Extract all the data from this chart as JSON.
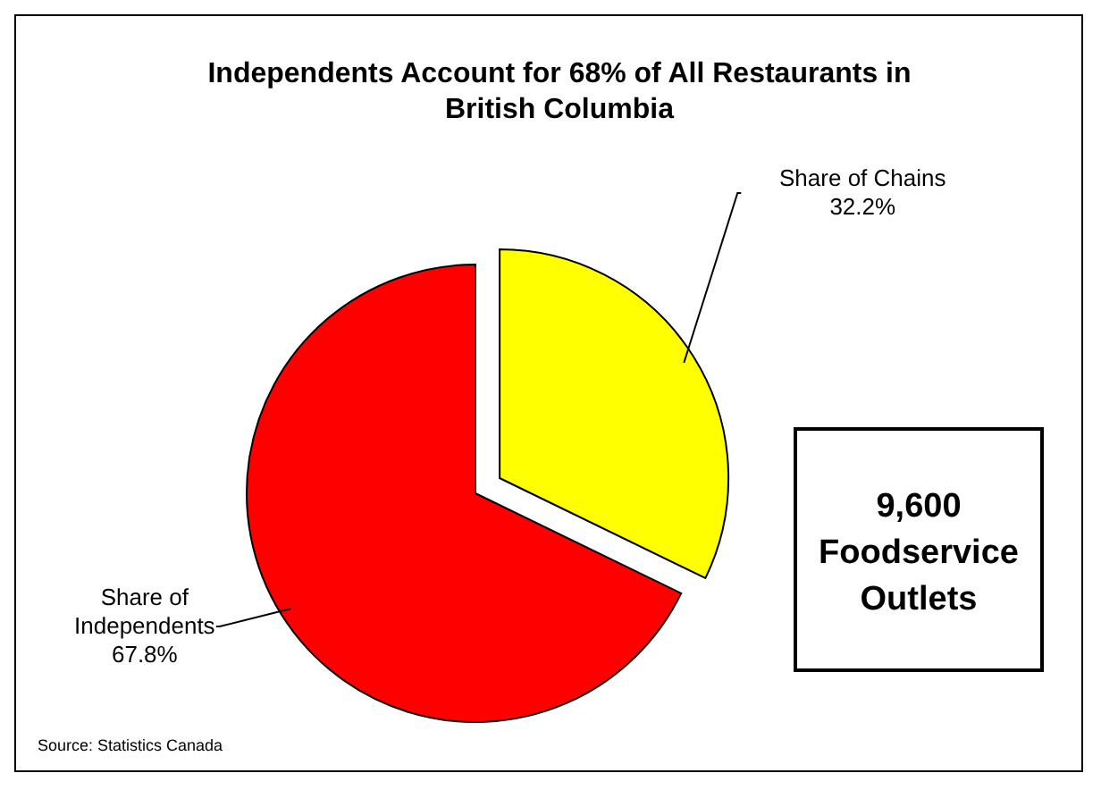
{
  "chart_data": {
    "type": "pie",
    "title": "Independents Account for 68% of All Restaurants in British Columbia",
    "categories": [
      "Share of Chains",
      "Share of Independents"
    ],
    "values": [
      32.2,
      67.8
    ],
    "colors": [
      "#ffff00",
      "#ff0000"
    ],
    "value_labels": [
      "32.2%",
      "67.8%"
    ],
    "annotations": [
      "9,600 Foodservice Outlets",
      "Source:  Statistics Canada"
    ]
  }
}
